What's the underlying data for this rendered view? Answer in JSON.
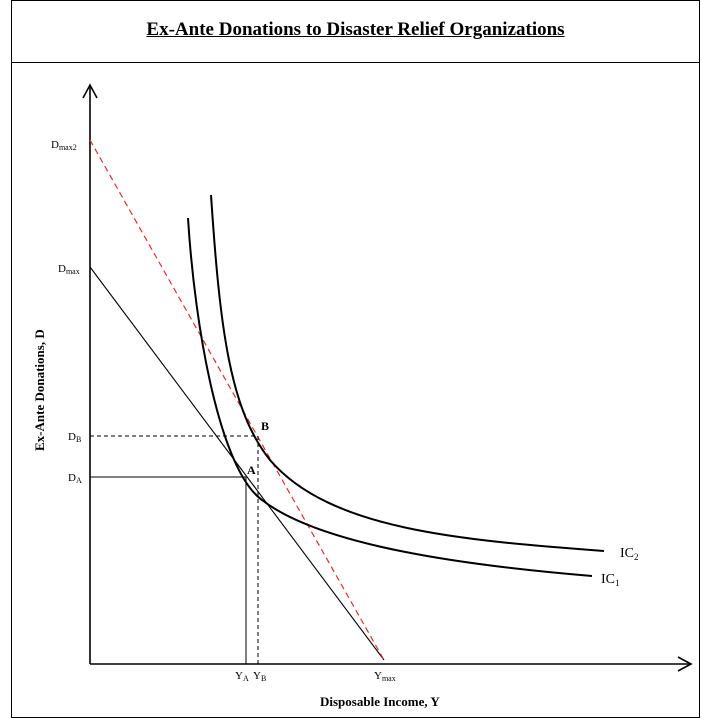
{
  "title": "Ex-Ante Donations to Disaster Relief Organizations",
  "axes": {
    "xlabel": "Disposable Income, Y",
    "ylabel": "Ex-Ante Donations, D"
  },
  "y_ticks": {
    "dmax2": {
      "main": "D",
      "sub": "max2"
    },
    "dmax": {
      "main": "D",
      "sub": "max"
    },
    "db": {
      "main": "D",
      "sub": "B"
    },
    "da": {
      "main": "D",
      "sub": "A"
    }
  },
  "x_ticks": {
    "ya": {
      "main": "Y",
      "sub": "A"
    },
    "yb": {
      "main": "Y",
      "sub": "B"
    },
    "ymax": {
      "main": "Y",
      "sub": "max"
    }
  },
  "points": {
    "a": "A",
    "b": "B"
  },
  "curves": {
    "ic1": {
      "main": "IC",
      "sub": "1"
    },
    "ic2": {
      "main": "IC",
      "sub": "2"
    }
  },
  "colors": {
    "budget_line": "#000000",
    "budget_line_2": "#e03030",
    "curves": "#000000"
  }
}
